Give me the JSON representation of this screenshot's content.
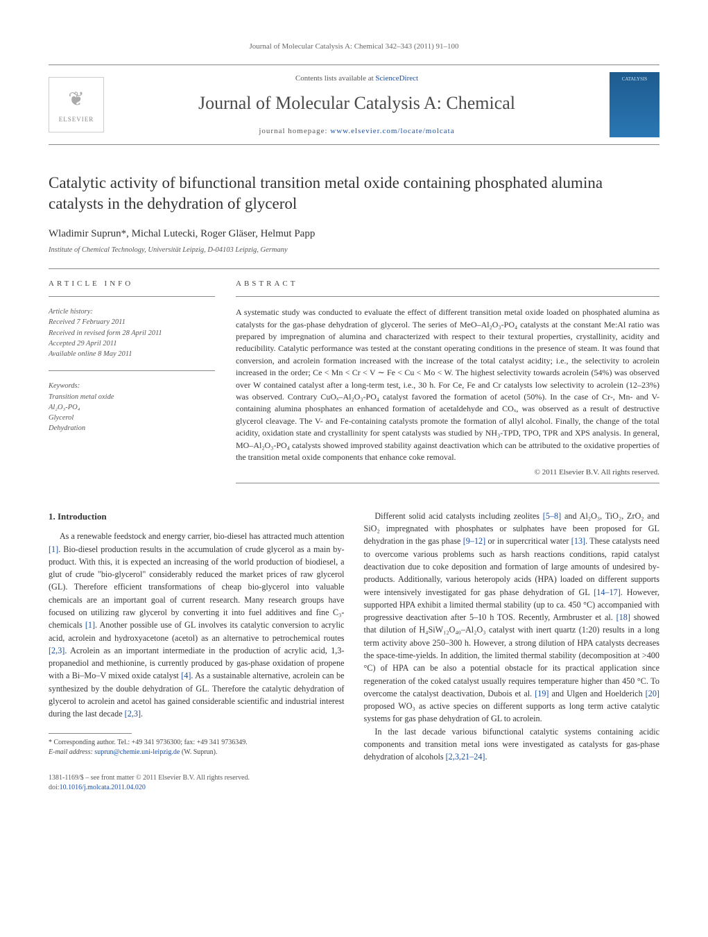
{
  "running_head": "Journal of Molecular Catalysis A: Chemical 342–343 (2011) 91–100",
  "masthead": {
    "contents_prefix": "Contents lists available at ",
    "contents_link": "ScienceDirect",
    "journal": "Journal of Molecular Catalysis A: Chemical",
    "homepage_prefix": "journal homepage: ",
    "homepage_link": "www.elsevier.com/locate/molcata",
    "publisher": "ELSEVIER",
    "cover_label": "CATALYSIS"
  },
  "article": {
    "title": "Catalytic activity of bifunctional transition metal oxide containing phosphated alumina catalysts in the dehydration of glycerol",
    "authors": "Wladimir Suprun*, Michal Lutecki, Roger Gläser, Helmut Papp",
    "affiliation": "Institute of Chemical Technology, Universität Leipzig, D-04103 Leipzig, Germany"
  },
  "info": {
    "heading": "ARTICLE INFO",
    "history_label": "Article history:",
    "received": "Received 7 February 2011",
    "revised": "Received in revised form 28 April 2011",
    "accepted": "Accepted 29 April 2011",
    "online": "Available online 8 May 2011",
    "keywords_label": "Keywords:",
    "keywords": [
      "Transition metal oxide",
      "Al₂O₃-PO₄",
      "Glycerol",
      "Dehydration"
    ]
  },
  "abstract": {
    "heading": "ABSTRACT",
    "body": "A systematic study was conducted to evaluate the effect of different transition metal oxide loaded on phosphated alumina as catalysts for the gas-phase dehydration of glycerol. The series of MeO–Al₂O₃-PO₄ catalysts at the constant Me:Al ratio was prepared by impregnation of alumina and characterized with respect to their textural properties, crystallinity, acidity and reducibility. Catalytic performance was tested at the constant operating conditions in the presence of steam. It was found that conversion, and acrolein formation increased with the increase of the total catalyst acidity; i.e., the selectivity to acrolein increased in the order; Ce < Mn < Cr < V ∼ Fe < Cu < Mo < W. The highest selectivity towards acrolein (54%) was observed over W contained catalyst after a long-term test, i.e., 30 h. For Ce, Fe and Cr catalysts low selectivity to acrolein (12–23%) was observed. Contrary CuOₓ–Al₂O₃-PO₄ catalyst favored the formation of acetol (50%). In the case of Cr-, Mn- and V-containing alumina phosphates an enhanced formation of acetaldehyde and COₓ, was observed as a result of destructive glycerol cleavage. The V- and Fe-containing catalysts promote the formation of allyl alcohol. Finally, the change of the total acidity, oxidation state and crystallinity for spent catalysts was studied by NH₃-TPD, TPO, TPR and XPS analysis. In general, MO–Al₂O₃-PO₄ catalysts showed improved stability against deactivation which can be attributed to the oxidative properties of the transition metal oxide components that enhance coke removal.",
    "copyright": "© 2011 Elsevier B.V. All rights reserved."
  },
  "body": {
    "section_number": "1.",
    "section_title": "Introduction",
    "p1": "As a renewable feedstock and energy carrier, bio-diesel has attracted much attention [1]. Bio-diesel production results in the accumulation of crude glycerol as a main by-product. With this, it is expected an increasing of the world production of biodiesel, a glut of crude \"bio-glycerol\" considerably reduced the market prices of raw glycerol (GL). Therefore efficient transformations of cheap bio-glycerol into valuable chemicals are an important goal of current research. Many research groups have focused on utilizing raw glycerol by converting it into fuel additives and fine C₃-chemicals [1]. Another possible use of GL involves its catalytic conversion to acrylic acid, acrolein and hydroxyacetone (acetol) as an alternative to petrochemical routes [2,3]. Acrolein as an important intermediate in the production of acrylic acid, 1,3-propanediol and methionine, is currently produced by gas-phase oxidation of propene with a Bi–Mo–V mixed oxide catalyst [4]. As a sustainable alternative, acrolein can be synthesized by the double dehydration of GL. Therefore the catalytic dehydration of glycerol to acrolein and acetol has gained considerable scientific and industrial interest during the last decade [2,3].",
    "p2": "Different solid acid catalysts including zeolites [5–8] and Al₂O₃, TiO₂, ZrO₂ and SiO₂ impregnated with phosphates or sulphates have been proposed for GL dehydration in the gas phase [9–12] or in supercritical water [13]. These catalysts need to overcome various problems such as harsh reactions conditions, rapid catalyst deactivation due to coke deposition and formation of large amounts of undesired by-products. Additionally, various heteropoly acids (HPA) loaded on different supports were intensively investigated for gas phase dehydration of GL [14–17]. However, supported HPA exhibit a limited thermal stability (up to ca. 450 °C) accompanied with progressive deactivation after 5–10 h TOS. Recently, Armbruster et al. [18] showed that dilution of H₄SiW₁₂O₄₀–Al₂O₃ catalyst with inert quartz (1:20) results in a long term activity above 250–300 h. However, a strong dilution of HPA catalysts decreases the space-time-yields. In addition, the limited thermal stability (decomposition at >400 °C) of HPA can be also a potential obstacle for its practical application since regeneration of the coked catalyst usually requires temperature higher than 450 °C. To overcome the catalyst deactivation, Dubois et al. [19] and Ulgen and Hoelderich [20] proposed WO₃ as active species on different supports as long term active catalytic systems for gas phase dehydration of GL to acrolein.",
    "p3": "In the last decade various bifunctional catalytic systems containing acidic components and transition metal ions were investigated as catalysts for gas-phase dehydration of alcohols [2,3,21–24]."
  },
  "footnote": {
    "corr": "* Corresponding author. Tel.: +49 341 9736300; fax: +49 341 9736349.",
    "email_label": "E-mail address: ",
    "email": "suprun@chemie.uni-leipzig.de",
    "email_suffix": " (W. Suprun)."
  },
  "footer": {
    "left_line1": "1381-1169/$ – see front matter © 2011 Elsevier B.V. All rights reserved.",
    "left_line2_prefix": "doi:",
    "doi": "10.1016/j.molcata.2011.04.020"
  },
  "colors": {
    "link": "#1a4fa3",
    "text": "#333333",
    "muted": "#666666",
    "rule": "#888888"
  }
}
